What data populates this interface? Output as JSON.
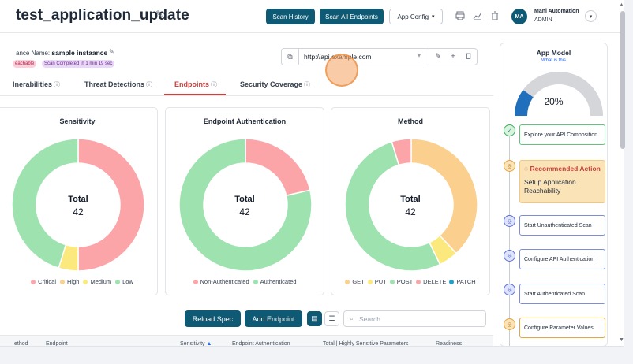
{
  "header": {
    "title": "test_application_update",
    "scan_history_label": "Scan History",
    "scan_all_label": "Scan All Endpoints",
    "app_config_label": "App Config",
    "user": {
      "initials": "MA",
      "name": "Mani Automation",
      "role": "ADMIN"
    }
  },
  "instance": {
    "label": "ance Name:",
    "name": "sample instaance",
    "badges": {
      "reachable": "eachable",
      "scan_status": "Scan Completed in 1 min 19 sec"
    },
    "url": {
      "value": "http://api.example.com"
    }
  },
  "tabs": [
    {
      "label": "lnerabilities",
      "active": false
    },
    {
      "label": "Threat Detections",
      "active": false
    },
    {
      "label": "Endpoints",
      "active": true
    },
    {
      "label": "Security Coverage",
      "active": false
    }
  ],
  "colors": {
    "critical": "#fca5a9",
    "high": "#fbcf8e",
    "medium": "#fbe97e",
    "low": "#9ee2b0",
    "patch": "#1fa0c6",
    "brand": "#0e5a74",
    "active_tab": "#c8413d"
  },
  "chart_data": [
    {
      "type": "pie",
      "title": "Sensitivity",
      "center_label": "Total",
      "total": "42",
      "categories": [
        "Critical",
        "High",
        "Medium",
        "Low"
      ],
      "values": [
        21,
        0,
        2,
        19
      ],
      "colors": [
        "#fca5a9",
        "#fbcf8e",
        "#fbe97e",
        "#9ee2b0"
      ]
    },
    {
      "type": "pie",
      "title": "Endpoint Authentication",
      "center_label": "Total",
      "total": "42",
      "categories": [
        "Non-Authenticated",
        "Authenticated"
      ],
      "values": [
        9,
        33
      ],
      "colors": [
        "#fca5a9",
        "#9ee2b0"
      ]
    },
    {
      "type": "pie",
      "title": "Method",
      "center_label": "Total",
      "total": "42",
      "categories": [
        "GET",
        "PUT",
        "POST",
        "DELETE",
        "PATCH"
      ],
      "values": [
        16,
        2,
        22,
        2,
        0
      ],
      "colors": [
        "#fbcf8e",
        "#fbe97e",
        "#9ee2b0",
        "#fca5a9",
        "#1fa0c6"
      ]
    }
  ],
  "toolbar": {
    "reload_label": "Reload Spec",
    "add_endpoint_label": "Add Endpoint",
    "search_placeholder": "Search"
  },
  "table": {
    "columns": [
      "ethod",
      "Endpoint",
      "Sensitivity",
      "Endpoint Authentication",
      "Total | Highly Sensitive Parameters",
      "Readiness"
    ]
  },
  "app_model": {
    "title": "App Model",
    "link": "What is this",
    "progress": 20,
    "progress_text": "20%",
    "steps": [
      {
        "label": "Explore your API Composition",
        "state": "done"
      },
      {
        "label": "Recommended Action",
        "body": "Setup Application Reachability",
        "state": "recommended"
      },
      {
        "label": "Start Unauthenticated Scan",
        "state": "todo"
      },
      {
        "label": "Configure API Authentication",
        "state": "todo"
      },
      {
        "label": "Start Authenticated Scan",
        "state": "todo"
      },
      {
        "label": "Configure Parameter Values",
        "state": "warn"
      }
    ]
  }
}
